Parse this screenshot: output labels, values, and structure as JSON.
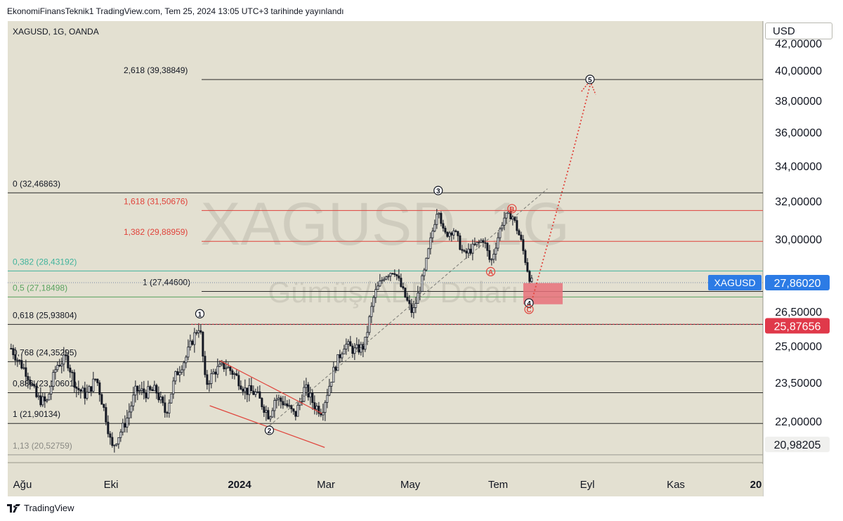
{
  "header": {
    "publisher_text": "EkonomiFinansTeknik1 TradingView.com, Tem 25, 2024 13:05 UTC+3 tarihinde yayınlandı"
  },
  "symbol_label": "XAGUSD, 1G, OANDA",
  "watermark": {
    "symbol": "XAGUSD, 1G",
    "description": "Gümüş/ABD Doları"
  },
  "currency_button": "USD",
  "footer": {
    "logo_text": "TradingView"
  },
  "colors": {
    "background": "#e3e0d1",
    "candle": "#131722",
    "fib_red": "#e0433b",
    "fib_green": "#5aa35f",
    "fib_teal": "#3fb39c",
    "price_tag": "#2c7be5",
    "alert_tag": "#e0394a"
  },
  "chart_data": {
    "type": "candlestick",
    "title": "XAGUSD, 1G, OANDA",
    "ylim": [
      20.4,
      42.5
    ],
    "y_ticks": [
      {
        "value": 42.0,
        "label": "42,00000"
      },
      {
        "value": 40.0,
        "label": "40,00000"
      },
      {
        "value": 38.0,
        "label": "38,00000"
      },
      {
        "value": 36.0,
        "label": "36,00000"
      },
      {
        "value": 34.0,
        "label": "34,00000"
      },
      {
        "value": 32.0,
        "label": "32,00000"
      },
      {
        "value": 30.0,
        "label": "30,00000"
      },
      {
        "value": 26.5,
        "label": "26,50000"
      },
      {
        "value": 25.0,
        "label": "25,00000"
      },
      {
        "value": 23.5,
        "label": "23,50000"
      },
      {
        "value": 22.0,
        "label": "22,00000"
      }
    ],
    "x_ticks": [
      {
        "label": "Ağu",
        "bold": false
      },
      {
        "label": "Eki",
        "bold": false
      },
      {
        "label": "2024",
        "bold": true
      },
      {
        "label": "Mar",
        "bold": false
      },
      {
        "label": "May",
        "bold": false
      },
      {
        "label": "Tem",
        "bold": false
      },
      {
        "label": "Eyl",
        "bold": false
      },
      {
        "label": "Kas",
        "bold": false
      },
      {
        "label": "20",
        "bold": true
      }
    ],
    "price_tags": [
      {
        "name": "XAGUSD",
        "value": 27.8602,
        "label": "27,86020",
        "kind": "last"
      },
      {
        "name": "",
        "value": 25.87656,
        "label": "25,87656",
        "kind": "alert"
      },
      {
        "name": "",
        "value": 20.98205,
        "label": "20,98205",
        "kind": "plain"
      }
    ],
    "fib_levels": [
      {
        "label": "2,618 (39,38849)",
        "value": 39.38849,
        "color": "black"
      },
      {
        "label": "0 (32,46863)",
        "value": 32.46863,
        "color": "black"
      },
      {
        "label": "1,618 (31,50676)",
        "value": 31.50676,
        "color": "red"
      },
      {
        "label": "1,382 (29,88959)",
        "value": 29.88959,
        "color": "red"
      },
      {
        "label": "0,382 (28,43192)",
        "value": 28.43192,
        "color": "teal"
      },
      {
        "label": "1 (27,44600)",
        "value": 27.446,
        "color": "black"
      },
      {
        "label": "0,5 (27,18498)",
        "value": 27.18498,
        "color": "green"
      },
      {
        "label": "0,618 (25,93804)",
        "value": 25.93804,
        "color": "black"
      },
      {
        "label": "0,768 (24,35295)",
        "value": 24.35295,
        "color": "black"
      },
      {
        "label": "0,886 (23,10601)",
        "value": 23.10601,
        "color": "black"
      },
      {
        "label": "1 (21,90134)",
        "value": 21.90134,
        "color": "black"
      },
      {
        "label": "1,13 (20,52759)",
        "value": 20.52759,
        "color": "gray"
      }
    ],
    "wave_labels": [
      {
        "label": "1",
        "date": "2023-12-04",
        "value": 26.4,
        "style": "black"
      },
      {
        "label": "2",
        "date": "2024-01-22",
        "value": 21.6,
        "style": "black"
      },
      {
        "label": "3",
        "date": "2024-05-20",
        "value": 32.6,
        "style": "black"
      },
      {
        "label": "A",
        "date": "2024-06-26",
        "value": 28.4,
        "style": "red"
      },
      {
        "label": "B",
        "date": "2024-07-11",
        "value": 31.6,
        "style": "red"
      },
      {
        "label": "4",
        "date": "2024-07-23",
        "value": 26.9,
        "style": "black"
      },
      {
        "label": "C",
        "date": "2024-07-23",
        "value": 26.6,
        "style": "red"
      },
      {
        "label": "5",
        "date": "2024-09-04",
        "value": 39.4,
        "style": "black"
      }
    ],
    "ohlc_dates": {
      "start": "2023-07-24",
      "end": "2024-07-25"
    },
    "close_path": [
      [
        "2023-07-24",
        24.9
      ],
      [
        "2023-07-28",
        24.5
      ],
      [
        "2023-08-04",
        23.9
      ],
      [
        "2023-08-11",
        22.9
      ],
      [
        "2023-08-18",
        22.7
      ],
      [
        "2023-08-25",
        24.2
      ],
      [
        "2023-09-01",
        24.5
      ],
      [
        "2023-09-08",
        23.3
      ],
      [
        "2023-09-15",
        23.0
      ],
      [
        "2023-09-22",
        23.7
      ],
      [
        "2023-09-29",
        22.1
      ],
      [
        "2023-10-03",
        20.8
      ],
      [
        "2023-10-13",
        22.0
      ],
      [
        "2023-10-20",
        23.2
      ],
      [
        "2023-10-27",
        23.1
      ],
      [
        "2023-11-03",
        23.2
      ],
      [
        "2023-11-10",
        22.3
      ],
      [
        "2023-11-17",
        23.8
      ],
      [
        "2023-11-24",
        24.5
      ],
      [
        "2023-12-01",
        25.6
      ],
      [
        "2023-12-04",
        25.9
      ],
      [
        "2023-12-08",
        23.4
      ],
      [
        "2023-12-15",
        24.0
      ],
      [
        "2023-12-22",
        24.2
      ],
      [
        "2023-12-29",
        23.8
      ],
      [
        "2024-01-05",
        23.2
      ],
      [
        "2024-01-12",
        23.1
      ],
      [
        "2024-01-22",
        22.2
      ],
      [
        "2024-01-26",
        22.9
      ],
      [
        "2024-02-02",
        22.7
      ],
      [
        "2024-02-09",
        22.2
      ],
      [
        "2024-02-16",
        23.3
      ],
      [
        "2024-02-23",
        22.6
      ],
      [
        "2024-02-28",
        22.4
      ],
      [
        "2024-03-08",
        24.1
      ],
      [
        "2024-03-15",
        25.1
      ],
      [
        "2024-03-22",
        24.8
      ],
      [
        "2024-03-29",
        25.0
      ],
      [
        "2024-04-05",
        27.3
      ],
      [
        "2024-04-12",
        28.2
      ],
      [
        "2024-04-19",
        28.5
      ],
      [
        "2024-04-26",
        27.3
      ],
      [
        "2024-05-02",
        26.4
      ],
      [
        "2024-05-10",
        28.3
      ],
      [
        "2024-05-20",
        31.8
      ],
      [
        "2024-05-24",
        30.2
      ],
      [
        "2024-05-31",
        30.5
      ],
      [
        "2024-06-07",
        29.2
      ],
      [
        "2024-06-14",
        29.6
      ],
      [
        "2024-06-21",
        30.0
      ],
      [
        "2024-06-26",
        28.8
      ],
      [
        "2024-07-05",
        31.1
      ],
      [
        "2024-07-11",
        31.3
      ],
      [
        "2024-07-17",
        30.0
      ],
      [
        "2024-07-23",
        28.2
      ],
      [
        "2024-07-25",
        27.86
      ]
    ]
  }
}
